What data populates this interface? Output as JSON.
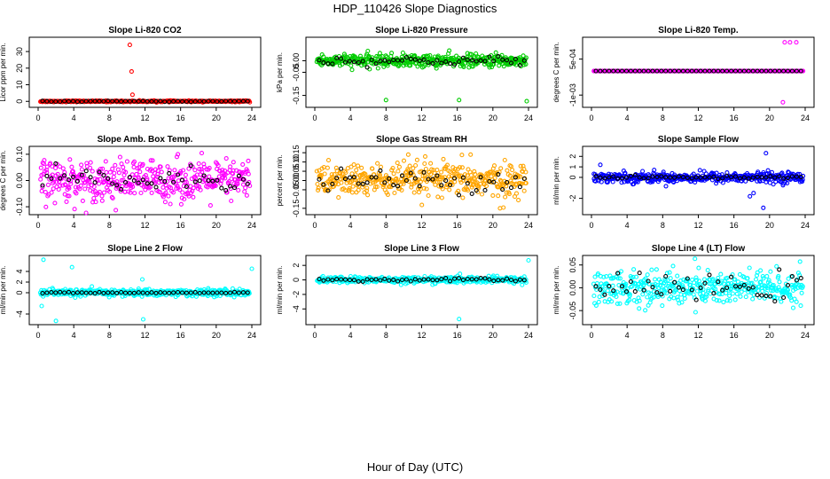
{
  "chart_data": {
    "type": "scatter",
    "title": "HDP_110426  Slope Diagnostics",
    "xlabel": "Hour of Day (UTC)",
    "xlim": [
      0,
      24
    ],
    "xticks": [
      "0",
      "4",
      "8",
      "12",
      "16",
      "20",
      "24"
    ],
    "marker_colors": {
      "overlay": "#000000"
    },
    "panels": [
      {
        "title": "Slope Li-820 CO2",
        "ylabel": "Licor ppm per min.",
        "color": "#ff0000",
        "ylim": [
          -2,
          37
        ],
        "yticks": [
          "0",
          "10",
          "20",
          "30"
        ],
        "ytick_values": [
          0,
          10,
          20,
          30
        ],
        "base": 0,
        "spread": 0.35,
        "outliers": [
          [
            10.3,
            34
          ],
          [
            10.5,
            18
          ],
          [
            10.6,
            4
          ]
        ],
        "overlay_spread": 0.25
      },
      {
        "title": "Slope Li-820 Pressure",
        "ylabel": "kPa per min.",
        "color": "#00cc00",
        "ylim": [
          -0.19,
          0.09
        ],
        "yticks": [
          "-0.15",
          "-0.05",
          "0.00"
        ],
        "ytick_values": [
          -0.15,
          -0.05,
          0.0
        ],
        "base": 0.0,
        "spread": 0.025,
        "outliers": [
          [
            8.0,
            -0.17
          ],
          [
            16.2,
            -0.17
          ],
          [
            23.8,
            -0.175
          ]
        ],
        "overlay_spread": 0.02
      },
      {
        "title": "Slope Li-820 Temp.",
        "ylabel": "degrees C per min.",
        "color": "#ff00ff",
        "ylim": [
          -0.0014,
          0.0013
        ],
        "yticks": [
          "-1e-03",
          "5e-04"
        ],
        "ytick_values": [
          -0.001,
          0.0005
        ],
        "base": 0.0,
        "spread": 0.0,
        "outliers": [
          [
            21.5,
            -0.0013
          ],
          [
            21.7,
            0.0012
          ],
          [
            22.3,
            0.0012
          ],
          [
            23.0,
            0.0012
          ]
        ],
        "overlay_spread": 0.0
      },
      {
        "title": "Slope Amb. Box Temp.",
        "ylabel": "degrees C per min.",
        "color": "#ff00ff",
        "ylim": [
          -0.12,
          0.12
        ],
        "yticks": [
          "-0.10",
          "0.00",
          "0.10"
        ],
        "ytick_values": [
          -0.1,
          0.0,
          0.1
        ],
        "base": 0.0,
        "spread": 0.07,
        "outliers": [],
        "overlay_spread": 0.05
      },
      {
        "title": "Slope Gas Stream RH",
        "ylabel": "percent per min.",
        "color": "#ffa500",
        "ylim": [
          -0.17,
          0.17
        ],
        "yticks": [
          "-0.15",
          "-0.05",
          "0.00",
          "0.05",
          "0.10",
          "0.15"
        ],
        "ytick_values": [
          -0.15,
          -0.05,
          0.0,
          0.05,
          0.1,
          0.15
        ],
        "base": 0.0,
        "spread": 0.08,
        "outliers": [
          [
            10.5,
            0.14
          ],
          [
            12.4,
            0.13
          ],
          [
            17.5,
            0.14
          ],
          [
            20.8,
            -0.15
          ]
        ],
        "overlay_spread": 0.06
      },
      {
        "title": "Slope Sample Flow",
        "ylabel": "ml/min per min.",
        "color": "#0000ff",
        "ylim": [
          -3.3,
          2.7
        ],
        "yticks": [
          "-2",
          "0",
          "1",
          "2"
        ],
        "ytick_values": [
          -2,
          0,
          1,
          2
        ],
        "base": 0.0,
        "spread": 0.45,
        "outliers": [
          [
            19.6,
            2.3
          ],
          [
            19.3,
            -2.9
          ],
          [
            17.8,
            -1.8
          ],
          [
            18.2,
            -1.5
          ],
          [
            1.0,
            1.2
          ]
        ],
        "overlay_spread": 0.15
      },
      {
        "title": "Slope Line 2 Flow",
        "ylabel": "ml/min per min.",
        "color": "#00ffff",
        "ylim": [
          -5.5,
          6.5
        ],
        "yticks": [
          "-4",
          "0",
          "2",
          "4"
        ],
        "ytick_values": [
          -4,
          0,
          2,
          4
        ],
        "base": 0.0,
        "spread": 0.6,
        "outliers": [
          [
            0.6,
            6.2
          ],
          [
            2.0,
            -5.3
          ],
          [
            3.8,
            4.8
          ],
          [
            11.8,
            -5.0
          ],
          [
            11.7,
            2.5
          ],
          [
            24.0,
            4.5
          ],
          [
            0.4,
            -2.5
          ]
        ],
        "overlay_spread": 0.1
      },
      {
        "title": "Slope Line 3 Flow",
        "ylabel": "ml/min per min.",
        "color": "#00ffff",
        "ylim": [
          -5.8,
          3.0
        ],
        "yticks": [
          "-4",
          "-2",
          "0",
          "2"
        ],
        "ytick_values": [
          -4,
          -2,
          0,
          2
        ],
        "base": 0.0,
        "spread": 0.4,
        "outliers": [
          [
            16.2,
            -5.4
          ],
          [
            24.0,
            2.7
          ]
        ],
        "overlay_spread": 0.25
      },
      {
        "title": "Slope Line 4 (LT) Flow",
        "ylabel": "ml/min per min.",
        "color": "#00ffff",
        "ylim": [
          -0.075,
          0.065
        ],
        "yticks": [
          "-0.05",
          "0.00",
          "0.05"
        ],
        "ytick_values": [
          -0.05,
          0.0,
          0.05
        ],
        "base": 0.0,
        "spread": 0.035,
        "outliers": [],
        "overlay_spread": 0.025
      }
    ]
  }
}
